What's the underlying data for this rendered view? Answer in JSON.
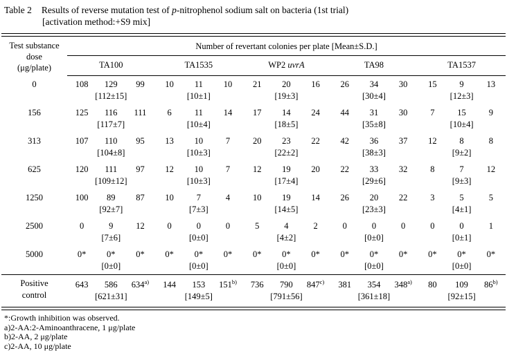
{
  "title": {
    "label": "Table 2",
    "line1_prefix": "Results of reverse mutation test of ",
    "line1_italic": "p",
    "line1_suffix": "-nitrophenol sodium salt on bacteria (1st trial)",
    "line2": "[activation method:+S9 mix]"
  },
  "header": {
    "dose_label_lines": [
      "Test substance",
      "dose",
      "(μg/plate)"
    ],
    "span_label": "Number of revertant colonies per plate [Mean±S.D.]",
    "strains": [
      {
        "text": "TA100",
        "italic": ""
      },
      {
        "text": "TA1535",
        "italic": ""
      },
      {
        "text": "WP2 ",
        "italic": "uvrA"
      },
      {
        "text": "TA98",
        "italic": ""
      },
      {
        "text": "TA1537",
        "italic": ""
      }
    ]
  },
  "chart_data": {
    "type": "table",
    "title": "Results of reverse mutation test of p-nitrophenol sodium salt on bacteria (1st trial) [activation method:+S9 mix]",
    "columns": [
      "Test substance dose (μg/plate)",
      "TA100",
      "TA1535",
      "WP2 uvrA",
      "TA98",
      "TA1537"
    ]
  },
  "rows": [
    {
      "dose": "0",
      "values": [
        "108",
        "129",
        "99",
        "10",
        "11",
        "10",
        "21",
        "20",
        "16",
        "26",
        "34",
        "30",
        "15",
        "9",
        "13"
      ],
      "means": [
        "[112±15]",
        "[10±1]",
        "[19±3]",
        "[30±4]",
        "[12±3]"
      ]
    },
    {
      "dose": "156",
      "values": [
        "125",
        "116",
        "111",
        "6",
        "11",
        "14",
        "17",
        "14",
        "24",
        "44",
        "31",
        "30",
        "7",
        "15",
        "9"
      ],
      "means": [
        "[117±7]",
        "[10±4]",
        "[18±5]",
        "[35±8]",
        "[10±4]"
      ]
    },
    {
      "dose": "313",
      "values": [
        "107",
        "110",
        "95",
        "13",
        "10",
        "7",
        "20",
        "23",
        "22",
        "42",
        "36",
        "37",
        "12",
        "8",
        "8"
      ],
      "means": [
        "[104±8]",
        "[10±3]",
        "[22±2]",
        "[38±3]",
        "[9±2]"
      ]
    },
    {
      "dose": "625",
      "values": [
        "120",
        "111",
        "97",
        "12",
        "10",
        "7",
        "12",
        "19",
        "20",
        "22",
        "33",
        "32",
        "8",
        "7",
        "12"
      ],
      "means": [
        "[109±12]",
        "[10±3]",
        "[17±4]",
        "[29±6]",
        "[9±3]"
      ]
    },
    {
      "dose": "1250",
      "values": [
        "100",
        "89",
        "87",
        "10",
        "7",
        "4",
        "10",
        "19",
        "14",
        "26",
        "20",
        "22",
        "3",
        "5",
        "5"
      ],
      "means": [
        "[92±7]",
        "[7±3]",
        "[14±5]",
        "[23±3]",
        "[4±1]"
      ]
    },
    {
      "dose": "2500",
      "values": [
        "0",
        "9",
        "12",
        "0",
        "0",
        "0",
        "5",
        "4",
        "2",
        "0",
        "0",
        "0",
        "0",
        "0",
        "1"
      ],
      "means": [
        "[7±6]",
        "[0±0]",
        "[4±2]",
        "[0±0]",
        "[0±1]"
      ]
    },
    {
      "dose": "5000",
      "values": [
        "0*",
        "0*",
        "0*",
        "0*",
        "0*",
        "0*",
        "0*",
        "0*",
        "0*",
        "0*",
        "0*",
        "0*",
        "0*",
        "0*",
        "0*"
      ],
      "means": [
        "[0±0]",
        "[0±0]",
        "[0±0]",
        "[0±0]",
        "[0±0]"
      ]
    }
  ],
  "positive_control": {
    "label_line1": "Positive",
    "label_line2": "control",
    "values": [
      "643",
      "586",
      "634^a)",
      "144",
      "153",
      "151^b)",
      "736",
      "790",
      "847^c)",
      "381",
      "354",
      "348^a)",
      "80",
      "109",
      "86^b)"
    ],
    "means": [
      "[621±31]",
      "[149±5]",
      "[791±56]",
      "[361±18]",
      "[92±15]"
    ]
  },
  "footnotes": [
    "*:Growth inhibition was observed.",
    "a)2-AA:2-Aminoanthracene, 1 μg/plate",
    "b)2-AA, 2 μg/plate",
    "c)2-AA, 10 μg/plate"
  ]
}
